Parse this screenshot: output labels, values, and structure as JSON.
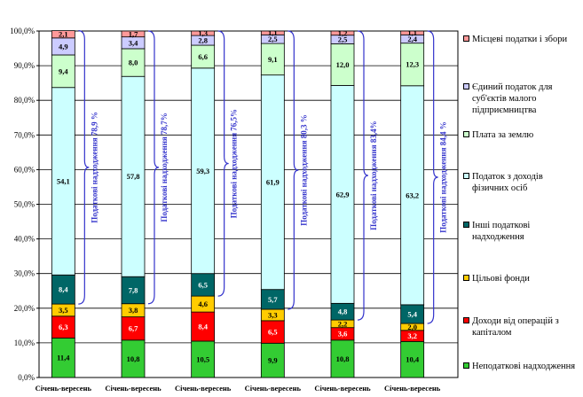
{
  "chart_data": {
    "type": "bar",
    "stacked": true,
    "categories": [
      "Січень-вересень",
      "Січень-вересень",
      "Січень-вересень",
      "Січень-вересень",
      "Січень-вересень",
      "Січень-вересень"
    ],
    "yticks": [
      "0,0%",
      "10,0%",
      "20,0%",
      "30,0%",
      "40,0%",
      "50,0%",
      "60,0%",
      "70,0%",
      "80,0%",
      "90,0%",
      "100,0%"
    ],
    "ylim": [
      0,
      100
    ],
    "grid": true,
    "legend_position": "right",
    "series": [
      {
        "name": "Неподаткові надходження",
        "color": "#33cc33",
        "values": [
          11.4,
          10.8,
          10.5,
          9.9,
          10.8,
          10.4
        ],
        "labels": [
          "11,4",
          "10,8",
          "10,5",
          "9,9",
          "10,8",
          "10,4"
        ]
      },
      {
        "name": "Доходи від операцій з капіталом",
        "color": "#ff0000",
        "values": [
          6.3,
          6.7,
          8.4,
          6.5,
          3.6,
          3.2
        ],
        "labels": [
          "6,3",
          "6,7",
          "8,4",
          "6,5",
          "3,6",
          "3,2"
        ]
      },
      {
        "name": "Цільові фонди",
        "color": "#ffcc00",
        "values": [
          3.5,
          3.8,
          4.6,
          3.3,
          2.2,
          2.0
        ],
        "labels": [
          "3,5",
          "3,8",
          "4,6",
          "3,3",
          "2,2",
          "2,0"
        ]
      },
      {
        "name": "Інші податкові надходження",
        "color": "#006666",
        "values": [
          8.4,
          7.8,
          6.5,
          5.7,
          4.8,
          5.4
        ],
        "labels": [
          "8,4",
          "7,8",
          "6,5",
          "5,7",
          "4,8",
          "5,4"
        ]
      },
      {
        "name": "Податок з доходів фізичних осіб",
        "color": "#ccffff",
        "values": [
          54.1,
          57.8,
          59.3,
          61.9,
          62.9,
          63.2
        ],
        "labels": [
          "54,1",
          "57,8",
          "59,3",
          "61,9",
          "62,9",
          "63,2"
        ]
      },
      {
        "name": "Плата за землю",
        "color": "#ccffcc",
        "values": [
          9.4,
          8.0,
          6.6,
          9.1,
          12.0,
          12.3
        ],
        "labels": [
          "9,4",
          "8,0",
          "6,6",
          "9,1",
          "12,0",
          "12,3"
        ]
      },
      {
        "name": "Єдиний податок для суб'єктів малого підприємництва",
        "color": "#ccccff",
        "values": [
          4.9,
          3.4,
          2.8,
          2.5,
          2.5,
          2.4
        ],
        "labels": [
          "4,9",
          "3,4",
          "2,8",
          "2,5",
          "2,5",
          "2,4"
        ]
      },
      {
        "name": "Місцеві податки і збори",
        "color": "#ff9999",
        "values": [
          2.1,
          1.7,
          1.3,
          1.1,
          1.2,
          1.1
        ],
        "labels": [
          "2,1",
          "1,7",
          "1,3",
          "1,1",
          "1,2",
          "1,1"
        ]
      }
    ],
    "annotations": [
      "Податкові надходження 78,9 %",
      "Податкові надходження 78,7%",
      "Податкові надходження 76,5%",
      "Податкові надходження 80,3 %",
      "Податкові надходження 83,4%",
      "Податкові надходження 84,4 %"
    ]
  },
  "legend": [
    {
      "lines": [
        "Місцеві податки і збори"
      ],
      "color": "#ff9999"
    },
    {
      "lines": [
        "Єдиний податок для",
        "суб'єктів малого",
        "підприємництва"
      ],
      "color": "#ccccff"
    },
    {
      "lines": [
        "Плата за землю"
      ],
      "color": "#ccffcc"
    },
    {
      "lines": [
        "Податок з доходів",
        "фізичних осіб"
      ],
      "color": "#ccffff"
    },
    {
      "lines": [
        "Інші податкові",
        "надходження"
      ],
      "color": "#006666"
    },
    {
      "lines": [
        "Цільові фонди"
      ],
      "color": "#ffcc00"
    },
    {
      "lines": [
        "Доходи від операцій з",
        "капіталом"
      ],
      "color": "#ff0000"
    },
    {
      "lines": [
        "Неподаткові надходження"
      ],
      "color": "#33cc33"
    }
  ]
}
